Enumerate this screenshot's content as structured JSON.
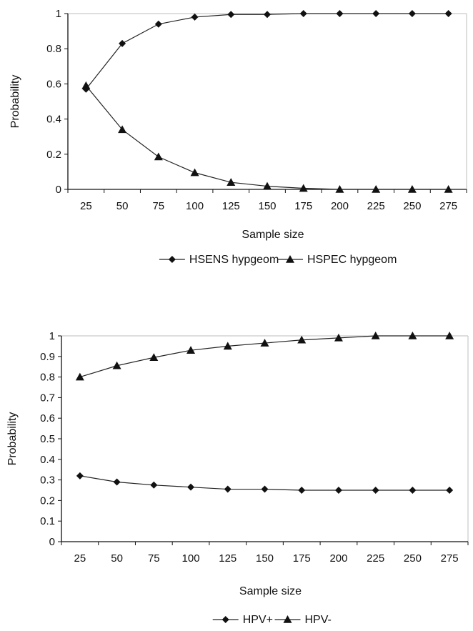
{
  "chart_data": [
    {
      "type": "line",
      "title": "",
      "xlabel": "Sample size",
      "ylabel": "Probability",
      "categories": [
        "25",
        "50",
        "75",
        "100",
        "125",
        "150",
        "175",
        "200",
        "225",
        "250",
        "275"
      ],
      "ylim": [
        0,
        1
      ],
      "yticks": [
        "0",
        "0.2",
        "0.4",
        "0.6",
        "0.8",
        "1"
      ],
      "grid": false,
      "legend_position": "bottom",
      "series": [
        {
          "name": "HSENS hypgeom",
          "marker": "diamond",
          "values": [
            0.57,
            0.83,
            0.94,
            0.98,
            0.995,
            0.995,
            1,
            1,
            1,
            1,
            1
          ]
        },
        {
          "name": "HSPEC hypgeom",
          "marker": "triangle",
          "values": [
            0.59,
            0.34,
            0.185,
            0.095,
            0.04,
            0.018,
            0.006,
            0,
            0,
            0,
            0
          ]
        }
      ]
    },
    {
      "type": "line",
      "title": "",
      "xlabel": "Sample size",
      "ylabel": "Probability",
      "categories": [
        "25",
        "50",
        "75",
        "100",
        "125",
        "150",
        "175",
        "200",
        "225",
        "250",
        "275"
      ],
      "ylim": [
        0,
        1
      ],
      "yticks": [
        "0",
        "0.1",
        "0.2",
        "0.3",
        "0.4",
        "0.5",
        "0.6",
        "0.7",
        "0.8",
        "0.9",
        "1"
      ],
      "grid": false,
      "legend_position": "bottom",
      "series": [
        {
          "name": "HPV+",
          "marker": "diamond",
          "values": [
            0.32,
            0.29,
            0.275,
            0.265,
            0.255,
            0.255,
            0.25,
            0.25,
            0.25,
            0.25,
            0.25
          ]
        },
        {
          "name": "HPV-",
          "marker": "triangle",
          "values": [
            0.8,
            0.855,
            0.895,
            0.93,
            0.95,
            0.965,
            0.98,
            0.99,
            1,
            1,
            1
          ]
        }
      ]
    }
  ]
}
